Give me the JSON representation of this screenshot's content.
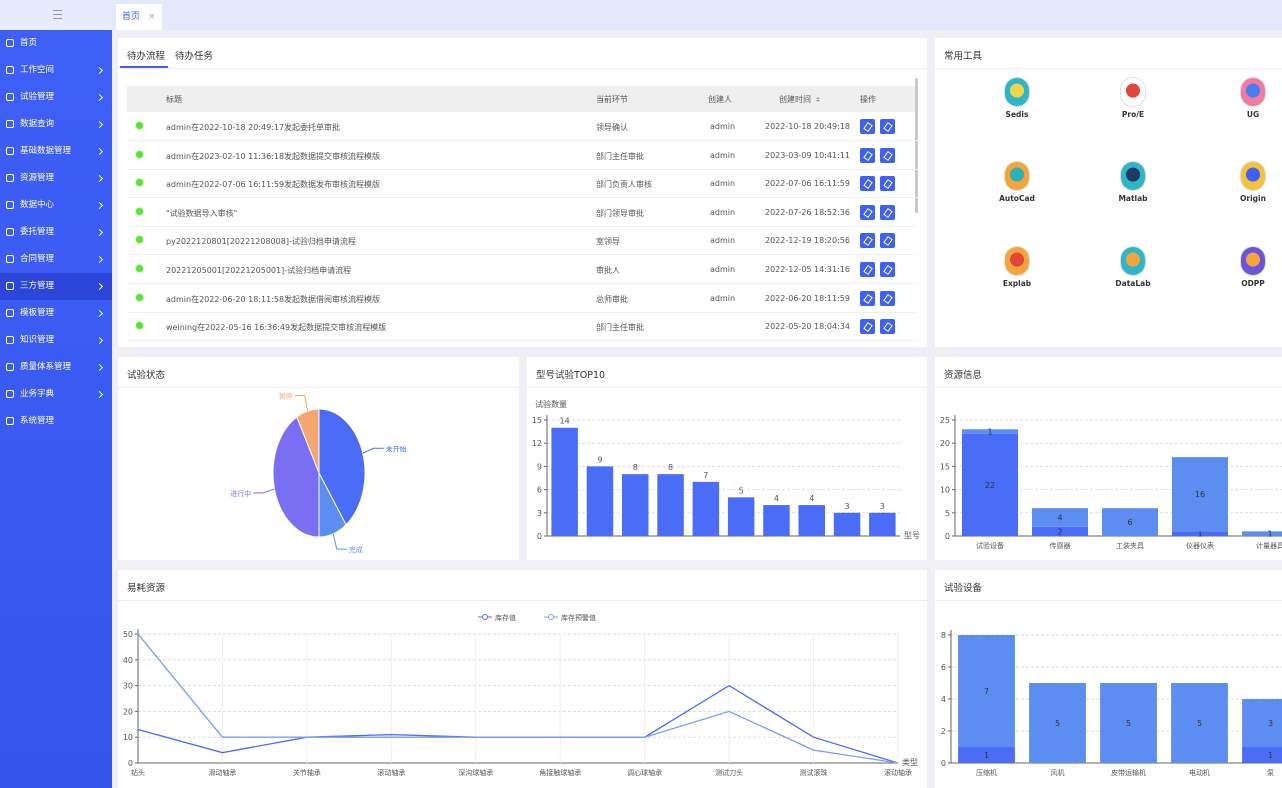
{
  "sidebar": {
    "menu": [
      "首页",
      "工作空间",
      "试验管理",
      "数据查询",
      "基础数据管理",
      "资源管理",
      "数据中心",
      "委托管理",
      "合同管理",
      "三方管理",
      "模板管理",
      "知识管理",
      "质量体系管理",
      "业务字典",
      "系统管理"
    ],
    "active": 9
  },
  "tabs": [
    "首页"
  ],
  "todo": {
    "tabs": [
      "待办流程",
      "待办任务"
    ],
    "columns": [
      "标题",
      "当前环节",
      "创建人",
      "创建时间",
      "操作"
    ],
    "rows": [
      [
        "admin在2022-10-18 20:49:17发起委托单审批",
        "领导确认",
        "admin",
        "2022-10-18 20:49:18"
      ],
      [
        "admin在2023-02-10 11:36:18发起数据提交审核流程模版",
        "部门主任审批",
        "admin",
        "2023-03-09 10:41:11"
      ],
      [
        "admin在2022-07-06 16:11:59发起数据发布审核流程模版",
        "部门负责人审核",
        "admin",
        "2022-07-06 16:11:59"
      ],
      [
        "\"试验数据导入审核\"",
        "部门领导审批",
        "admin",
        "2022-07-26 18:52:36"
      ],
      [
        "py2022120801[20221208008]-试验归档申请流程",
        "室领导",
        "admin",
        "2022-12-19 18:20:56"
      ],
      [
        "20221205001[20221205001]-试验归档申请流程",
        "审批人",
        "admin",
        "2022-12-05 14:31:16"
      ],
      [
        "admin在2022-06-20 18:11:58发起数据借阅审核流程模版",
        "总师审批",
        "admin",
        "2022-06-20 18:11:59"
      ],
      [
        "weining在2022-05-16 16:36:49发起数据提交审核流程模版",
        "部门主任审批",
        "",
        "2022-05-20 18:04:34"
      ]
    ]
  },
  "tools": {
    "title": "常用工具",
    "items": [
      "Sedis",
      "Pro/E",
      "UG",
      "AutoCad",
      "Matlab",
      "Origin",
      "Explab",
      "DataLab",
      "ODPP"
    ]
  },
  "chart_data": [
    {
      "type": "pie",
      "title": "试验状态",
      "categories": [
        "未开始",
        "完成",
        "进行中",
        "暂停"
      ],
      "values": [
        40,
        10,
        42,
        8
      ],
      "colors": [
        "#4a6cf7",
        "#5b8ef0",
        "#7a6ff2",
        "#f4a870"
      ]
    },
    {
      "type": "bar",
      "title": "型号试验TOP10",
      "y_label": "试验数量",
      "x_label": "型号",
      "categories": [
        null,
        null,
        null,
        null,
        null,
        null,
        null,
        null,
        null,
        null
      ],
      "values": [
        14,
        9,
        8,
        8,
        7,
        5,
        4,
        4,
        3,
        3
      ],
      "color": "#4a6cf7",
      "ylim": [
        0,
        15
      ],
      "yticks": [
        0,
        3,
        6,
        9,
        12,
        15
      ],
      "grid": true
    },
    {
      "type": "stacked_bar",
      "title": "资源信息",
      "categories": [
        "试验设备",
        "传感器",
        "工装夹具",
        "仪器仪表",
        "计量器具"
      ],
      "series": [
        {
          "color": "#4a6cf7",
          "values": [
            22,
            2,
            0,
            1,
            0
          ]
        },
        {
          "color": "#5b8ef0",
          "values": [
            1,
            4,
            6,
            16,
            1
          ]
        }
      ],
      "ylim": [
        0,
        25
      ],
      "yticks": [
        0,
        5,
        10,
        15,
        20,
        25
      ],
      "grid": true
    },
    {
      "type": "line",
      "title": "易耗资源",
      "x_label": "类型",
      "categories": [
        "钻头",
        "滑动轴承",
        "关节轴承",
        "滚动轴承",
        "深沟球轴承",
        "角接触球轴承",
        "调心球轴承",
        "测试刀头",
        "测试滚珠",
        "滚动轴承"
      ],
      "series": [
        {
          "name": "库存值",
          "color": "#4a6cf7",
          "values": [
            13,
            4,
            10,
            11,
            10,
            10,
            10,
            30,
            10,
            0
          ]
        },
        {
          "name": "库存预警值",
          "color": "#7b9cf5",
          "values": [
            50,
            10,
            10,
            10,
            10,
            10,
            10,
            20,
            5,
            0
          ]
        }
      ],
      "ylim": [
        0,
        50
      ],
      "yticks": [
        0,
        10,
        20,
        30,
        40,
        50
      ],
      "grid": true,
      "legend": "top"
    },
    {
      "type": "stacked_bar",
      "title": "试验设备",
      "categories": [
        "压缩机",
        "风机",
        "皮带运输机",
        "电动机",
        "泵"
      ],
      "series": [
        {
          "color": "#4a6cf7",
          "values": [
            1,
            0,
            0,
            0,
            1
          ]
        },
        {
          "color": "#5b8ef0",
          "values": [
            7,
            5,
            5,
            5,
            3
          ]
        }
      ],
      "ylim": [
        0,
        8
      ],
      "yticks": [
        0,
        2,
        4,
        6,
        8
      ],
      "grid": true
    }
  ]
}
